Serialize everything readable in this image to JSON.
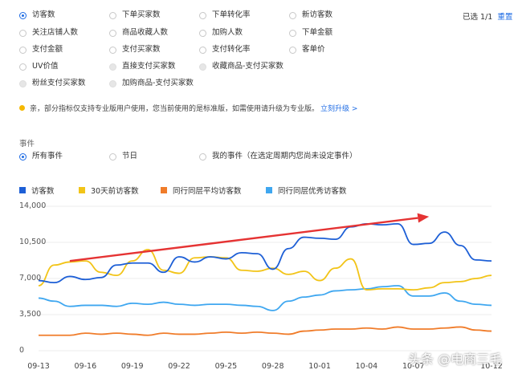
{
  "metrics": {
    "row1": [
      "访客数",
      "下单买家数",
      "下单转化率",
      "新访客数"
    ],
    "row2": [
      "关注店铺人数",
      "商品收藏人数",
      "加购人数",
      "下单金额"
    ],
    "row3": [
      "支付金额",
      "支付买家数",
      "支付转化率",
      "客单价"
    ],
    "row4": [
      "UV价值",
      "直接支付买家数",
      "收藏商品-支付买家数"
    ],
    "row5": [
      "粉丝支付买家数",
      "加购商品-支付买家数"
    ],
    "selected_count": "已选 1/1",
    "reset": "重置"
  },
  "notice": {
    "text": "亲，部分指标仅支持专业版用户使用，您当前使用的是标准版，如需使用请升级为专业版。",
    "link": "立刻升级 >"
  },
  "events": {
    "label": "事件",
    "options": [
      "所有事件",
      "节日",
      "我的事件（在选定周期内您尚未设定事件）"
    ]
  },
  "legend": [
    {
      "name": "访客数",
      "color": "#1d5fd6"
    },
    {
      "name": "30天前访客数",
      "color": "#f2c418"
    },
    {
      "name": "同行同层平均访客数",
      "color": "#f07c2a"
    },
    {
      "name": "同行同层优秀访客数",
      "color": "#3fa7f0"
    }
  ],
  "watermark": "头条 @电商三毛",
  "chart_data": {
    "type": "line",
    "ylim": [
      0,
      14000
    ],
    "yticks": [
      "14,000",
      "10,500",
      "7,000",
      "3,500",
      "0"
    ],
    "xticks": [
      "09-13",
      "09-16",
      "09-19",
      "09-22",
      "09-25",
      "09-28",
      "10-01",
      "10-04",
      "10-07",
      "10-12"
    ],
    "x_index_range": [
      0,
      29
    ],
    "xtick_index": [
      0,
      3,
      6,
      9,
      12,
      15,
      18,
      21,
      24,
      29
    ],
    "series": [
      {
        "name": "访客数",
        "color": "#1d5fd6",
        "values": [
          6800,
          6600,
          7200,
          6900,
          7100,
          8300,
          8500,
          8500,
          7600,
          9100,
          8600,
          9100,
          8900,
          9500,
          9400,
          7900,
          9900,
          11000,
          10900,
          10800,
          12000,
          12300,
          12200,
          12300,
          10300,
          10400,
          11500,
          10200,
          8800,
          8700
        ]
      },
      {
        "name": "30天前访客数",
        "color": "#f2c418",
        "values": [
          6300,
          8300,
          8600,
          8700,
          7600,
          7300,
          8700,
          9800,
          7800,
          7500,
          9000,
          9100,
          9000,
          7800,
          7700,
          8000,
          7400,
          7700,
          6800,
          8000,
          8900,
          5900,
          6000,
          6000,
          5900,
          6100,
          6600,
          6700,
          7000,
          7300
        ]
      },
      {
        "name": "同行同层平均访客数",
        "color": "#f07c2a",
        "values": [
          1500,
          1500,
          1500,
          1700,
          1600,
          1700,
          1600,
          1500,
          1700,
          1600,
          1600,
          1700,
          1800,
          1700,
          1800,
          1700,
          1600,
          1900,
          2000,
          2100,
          2100,
          2200,
          2100,
          2300,
          2100,
          2100,
          2200,
          2300,
          2000,
          1900
        ]
      },
      {
        "name": "同行同层优秀访客数",
        "color": "#3fa7f0",
        "values": [
          5100,
          4800,
          4300,
          4400,
          4400,
          4300,
          4600,
          4500,
          4700,
          4500,
          4400,
          4500,
          4500,
          4400,
          4300,
          3900,
          4800,
          5200,
          5400,
          5800,
          5900,
          6000,
          6200,
          6300,
          5300,
          5300,
          5600,
          4800,
          4500,
          4400
        ]
      }
    ],
    "annotation": {
      "type": "arrow",
      "color": "#e53333",
      "from": [
        2,
        8700
      ],
      "to": [
        25,
        13000
      ]
    },
    "grid": true
  }
}
